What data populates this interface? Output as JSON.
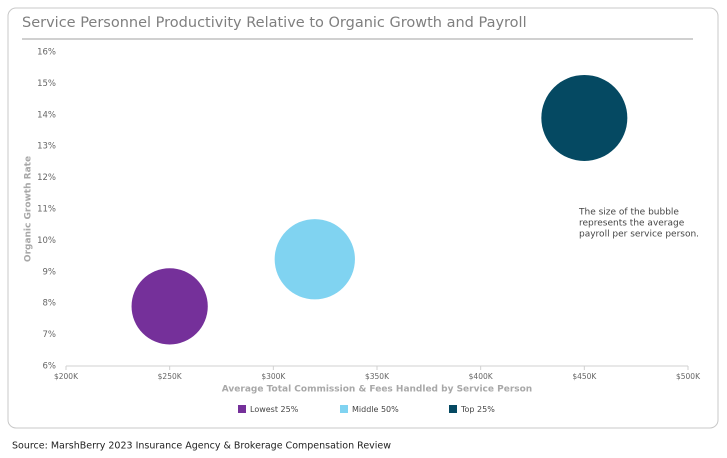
{
  "chart_data": {
    "type": "bubble",
    "title": "Service Personnel Productivity Relative to Organic Growth and Payroll",
    "xlabel": "Average Total Commission & Fees Handled by Service Person",
    "ylabel": "Organic Growth Rate",
    "xlim": [
      200000,
      500000
    ],
    "xticks": [
      {
        "value": 200000,
        "label": "$200K"
      },
      {
        "value": 250000,
        "label": "$250K"
      },
      {
        "value": 300000,
        "label": "$300K"
      },
      {
        "value": 350000,
        "label": "$350K"
      },
      {
        "value": 400000,
        "label": "$400K"
      },
      {
        "value": 450000,
        "label": "$450K"
      },
      {
        "value": 500000,
        "label": "$500K"
      }
    ],
    "ylim": [
      6,
      16
    ],
    "yticks": [
      {
        "value": 6,
        "label": "6%"
      },
      {
        "value": 7,
        "label": "7%"
      },
      {
        "value": 8,
        "label": "8%"
      },
      {
        "value": 9,
        "label": "9%"
      },
      {
        "value": 10,
        "label": "10%"
      },
      {
        "value": 11,
        "label": "11%"
      },
      {
        "value": 12,
        "label": "12%"
      },
      {
        "value": 13,
        "label": "13%"
      },
      {
        "value": 14,
        "label": "14%"
      },
      {
        "value": 15,
        "label": "15%"
      },
      {
        "value": 16,
        "label": "16%"
      }
    ],
    "grid": false,
    "legend": "bottom",
    "series": [
      {
        "name": "Lowest 25%",
        "color": "#75309a",
        "x": [
          250000
        ],
        "values": [
          7.9
        ],
        "sizes": [
          55000
        ]
      },
      {
        "name": "Middle 50%",
        "color": "#80d3f1",
        "x": [
          320000
        ],
        "values": [
          9.4
        ],
        "sizes": [
          61000
        ]
      },
      {
        "name": "Top 25%",
        "color": "#054962",
        "x": [
          450000
        ],
        "values": [
          13.9
        ],
        "sizes": [
          70000
        ]
      }
    ],
    "annotation": [
      "The size of the bubble",
      "represents the average",
      "payroll per service person."
    ],
    "source": "Source: MarshBerry 2023 Insurance Agency & Brokerage Compensation Review"
  }
}
